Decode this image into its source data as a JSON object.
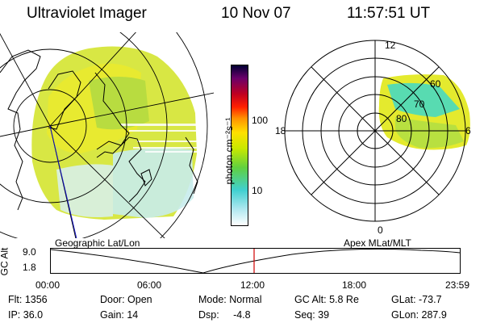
{
  "header": {
    "instrument": "Ultraviolet Imager",
    "date": "10 Nov 07",
    "time": "11:57:51 UT"
  },
  "colorbar": {
    "unit_label": "photon cm⁻²s⁻¹",
    "ticks": [
      "100",
      "10"
    ],
    "colors": [
      "#000033",
      "#6a006a",
      "#c00020",
      "#ff2000",
      "#ff9000",
      "#ffe000",
      "#c8e800",
      "#60d040",
      "#40d0d0",
      "#b0e8f0",
      "#ffffff"
    ]
  },
  "left_map": {
    "projection_label": "Geographic Lat/Lon"
  },
  "right_map": {
    "projection_label": "Apex MLat/MLT",
    "mlt_labels": {
      "top": "12",
      "left": "18",
      "right": "6",
      "bottom": "0"
    },
    "lat_labels": [
      "60",
      "70",
      "80"
    ]
  },
  "altitude_plot": {
    "axis_label": "GC Alt",
    "y_ticks": [
      "9.0",
      "1.8"
    ],
    "x_ticks": [
      "00:00",
      "06:00",
      "12:00",
      "18:00",
      "23:59"
    ],
    "marker_color": "#d00000"
  },
  "status": {
    "flt": "Flt:  1356",
    "ip": "IP:  36.0",
    "door": "Door:  Open",
    "gain": "Gain:  14",
    "mode": "Mode:  Normal",
    "dsp": "Dsp:     -4.8",
    "gc_alt": "GC Alt:  5.8 Re",
    "seq": "Seq:  39",
    "glat": "GLat:  -73.7",
    "glon": "GLon:  287.9"
  }
}
